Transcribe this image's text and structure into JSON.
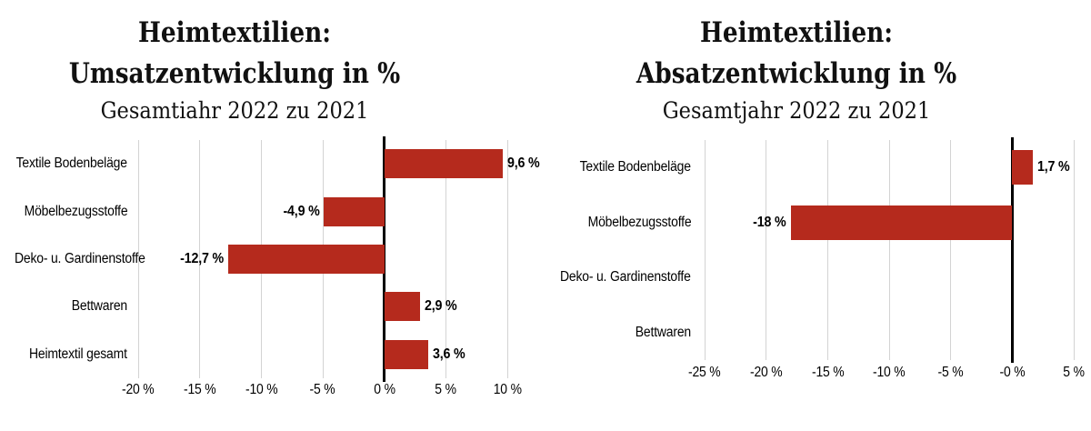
{
  "chart_data": [
    {
      "type": "bar",
      "orientation": "horizontal",
      "title": "Heimtextilien: Umsatzentwicklung in %",
      "title_line1": "Heimtextilien:",
      "title_line2": "Umsatzentwicklung in %",
      "subtitle": "Gesamtiahr 2022 zu 2021",
      "categories": [
        "Textile Bodenbeläge",
        "Möbelbezugsstoffe",
        "Deko- u. Gardinenstoffe",
        "Bettwaren",
        "Heimtextil gesamt"
      ],
      "values": [
        9.6,
        -4.9,
        -12.7,
        2.9,
        3.6
      ],
      "value_labels": [
        "9,6 %",
        "-4,9 %",
        "-12,7 %",
        "2,9 %",
        "3,6 %"
      ],
      "xlim": [
        -20,
        10
      ],
      "xticks": [
        -20,
        -15,
        -10,
        -5,
        0,
        5,
        10
      ],
      "xtick_labels": [
        "-20 %",
        "-15 %",
        "-10 %",
        "-5 %",
        "0 %",
        "5 %",
        "10 %"
      ],
      "bar_color": "#b52a1d",
      "gridline_color": "#d3d3d3",
      "axis_color": "#000000",
      "grid": true,
      "legend": null
    },
    {
      "type": "bar",
      "orientation": "horizontal",
      "title": "Heimtextilien: Absatzentwicklung in %",
      "title_line1": "Heimtextilien:",
      "title_line2": "Absatzentwicklung in %",
      "subtitle": "Gesamtjahr 2022 zu 2021",
      "categories": [
        "Textile Bodenbeläge",
        "Möbelbezugsstoffe",
        "Deko- u. Gardinenstoffe",
        "Bettwaren"
      ],
      "values": [
        1.7,
        -18,
        null,
        null
      ],
      "value_labels": [
        "1,7 %",
        "-18 %",
        null,
        null
      ],
      "xlim": [
        -25,
        5
      ],
      "xticks": [
        -25,
        -20,
        -15,
        -10,
        -5,
        0,
        5
      ],
      "xtick_labels": [
        "-25 %",
        "-20 %",
        "-15 %",
        "-10 %",
        "-5 %",
        "-0 %",
        "5 %"
      ],
      "bar_color": "#b52a1d",
      "gridline_color": "#d3d3d3",
      "axis_color": "#000000",
      "grid": true,
      "legend": null
    }
  ]
}
